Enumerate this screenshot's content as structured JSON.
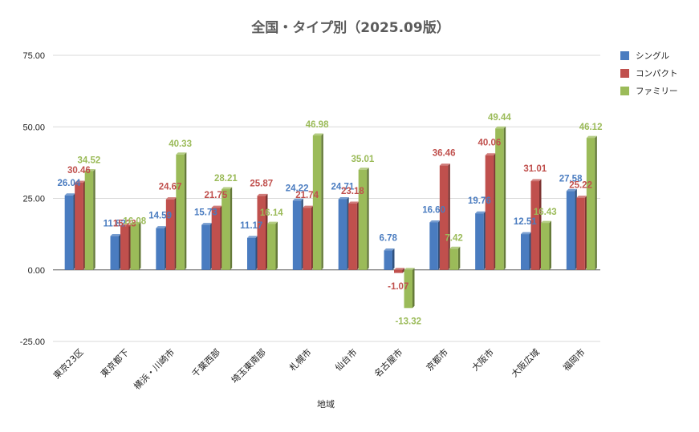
{
  "chart_data": {
    "type": "bar",
    "title": "全国・タイプ別（2025.09版）",
    "xlabel": "地域",
    "ylabel": "",
    "ylim": [
      -25,
      75
    ],
    "yticks": [
      "75.00",
      "50.00",
      "25.00",
      "0.00",
      "-25.00"
    ],
    "categories": [
      "東京23区",
      "東京都下",
      "横浜・川崎市",
      "千葉西部",
      "埼玉東南部",
      "札幌市",
      "仙台市",
      "名古屋市",
      "京都市",
      "大阪市",
      "大阪広域",
      "福岡市"
    ],
    "series": [
      {
        "name": "シングル",
        "color": "#4a7cc0",
        "values": [
          26.04,
          11.82,
          14.59,
          15.73,
          11.17,
          24.22,
          24.71,
          6.78,
          16.6,
          19.76,
          12.51,
          27.58
        ],
        "labels": [
          "26.04",
          "11.82",
          "14.59",
          "15.73",
          "11.17",
          "24.22",
          "24.71",
          "6.78",
          "16.60",
          "19.76",
          "12.51",
          "27.58"
        ]
      },
      {
        "name": "コンパクト",
        "color": "#c0504d",
        "values": [
          30.46,
          15.23,
          24.67,
          21.75,
          25.87,
          21.74,
          23.18,
          -1.07,
          36.46,
          40.06,
          31.01,
          25.22
        ],
        "labels": [
          "30.46",
          "15.23",
          "24.67",
          "21.75",
          "25.87",
          "21.74",
          "23.18",
          "-1.07",
          "36.46",
          "40.06",
          "31.01",
          "25.22"
        ]
      },
      {
        "name": "ファミリー",
        "color": "#9bbb59",
        "values": [
          34.52,
          16.08,
          40.33,
          28.21,
          16.14,
          46.98,
          35.01,
          -13.32,
          7.42,
          49.44,
          16.43,
          46.12
        ],
        "labels": [
          "34.52",
          "16.08",
          "40.33",
          "28.21",
          "16.14",
          "46.98",
          "35.01",
          "-13.32",
          "7.42",
          "49.44",
          "16.43",
          "46.12"
        ]
      }
    ],
    "grid": true,
    "legend_position": "right"
  }
}
